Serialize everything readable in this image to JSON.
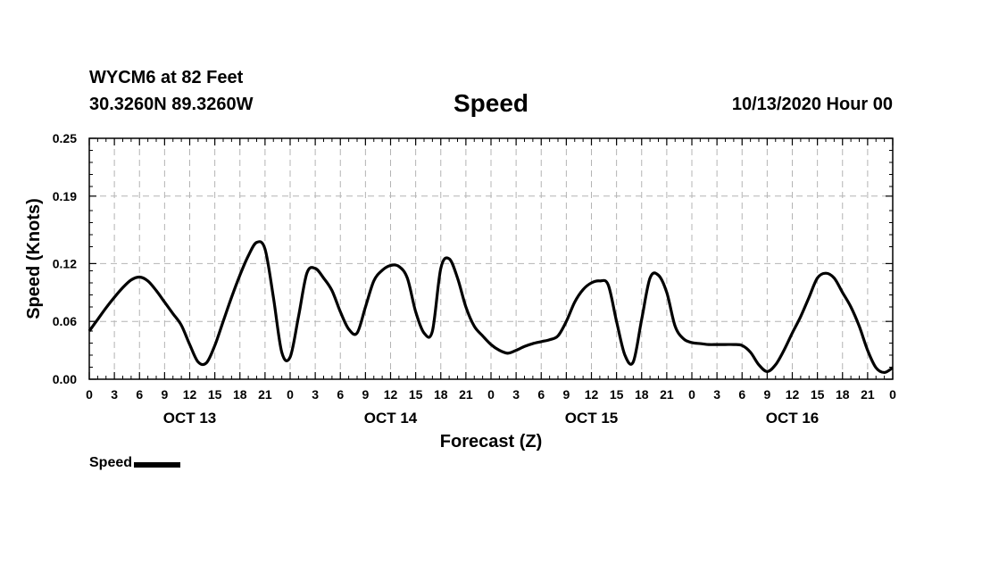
{
  "header": {
    "station": "WYCM6 at 82 Feet",
    "coords": "30.3260N 89.3260W",
    "title": "Speed",
    "date": "10/13/2020 Hour 00"
  },
  "legend": {
    "label": "Speed"
  },
  "colors": {
    "line": "#000000",
    "grid": "#b4b4b4",
    "axis": "#000000"
  },
  "chart_data": {
    "type": "line",
    "title": "Speed",
    "xlabel": "Forecast (Z)",
    "ylabel": "Speed (Knots)",
    "x_unit": "forecast hour from 10/13/2020 00Z",
    "xlim": [
      0,
      96
    ],
    "ylim": [
      0,
      0.25
    ],
    "yticks": [
      0.0,
      0.06,
      0.12,
      0.19,
      0.25
    ],
    "ytick_labels": [
      "0.00",
      "0.06",
      "0.12",
      "0.19",
      "0.25"
    ],
    "xticks": [
      0,
      3,
      6,
      9,
      12,
      15,
      18,
      21,
      24,
      27,
      30,
      33,
      36,
      39,
      42,
      45,
      48,
      51,
      54,
      57,
      60,
      63,
      66,
      69,
      72,
      75,
      78,
      81,
      84,
      87,
      90,
      93,
      96
    ],
    "xtick_labels": [
      "0",
      "3",
      "6",
      "9",
      "12",
      "15",
      "18",
      "21",
      "0",
      "3",
      "6",
      "9",
      "12",
      "15",
      "18",
      "21",
      "0",
      "3",
      "6",
      "9",
      "12",
      "15",
      "18",
      "21",
      "0",
      "3",
      "6",
      "9",
      "12",
      "15",
      "18",
      "21",
      "0"
    ],
    "day_labels": [
      {
        "label": "OCT 13",
        "hour": 12
      },
      {
        "label": "OCT 14",
        "hour": 36
      },
      {
        "label": "OCT 15",
        "hour": 60
      },
      {
        "label": "OCT 16",
        "hour": 84
      }
    ],
    "grid": true,
    "legend_position": "bottom-left",
    "series": [
      {
        "name": "Speed",
        "x": [
          0,
          1,
          2,
          3,
          4,
          5,
          6,
          7,
          8,
          9,
          10,
          11,
          12,
          13,
          14,
          15,
          16,
          17,
          18,
          19,
          20,
          21,
          22,
          23,
          24,
          25,
          26,
          27,
          28,
          29,
          30,
          31,
          32,
          33,
          34,
          35,
          36,
          37,
          38,
          39,
          40,
          41,
          42,
          43,
          44,
          45,
          46,
          47,
          48,
          49,
          50,
          51,
          52,
          53,
          54,
          55,
          56,
          57,
          58,
          59,
          60,
          61,
          62,
          63,
          64,
          65,
          66,
          67,
          68,
          69,
          70,
          71,
          72,
          73,
          74,
          75,
          76,
          77,
          78,
          79,
          80,
          81,
          82,
          83,
          84,
          85,
          86,
          87,
          88,
          89,
          90,
          91,
          92,
          93,
          94,
          95,
          96
        ],
        "values": [
          0.05,
          0.062,
          0.074,
          0.085,
          0.095,
          0.103,
          0.106,
          0.102,
          0.092,
          0.08,
          0.068,
          0.056,
          0.036,
          0.018,
          0.017,
          0.035,
          0.06,
          0.085,
          0.108,
          0.128,
          0.142,
          0.135,
          0.085,
          0.028,
          0.023,
          0.065,
          0.11,
          0.115,
          0.105,
          0.092,
          0.07,
          0.052,
          0.048,
          0.075,
          0.102,
          0.113,
          0.118,
          0.117,
          0.105,
          0.07,
          0.048,
          0.05,
          0.115,
          0.125,
          0.105,
          0.075,
          0.055,
          0.045,
          0.036,
          0.03,
          0.027,
          0.03,
          0.034,
          0.037,
          0.039,
          0.041,
          0.045,
          0.06,
          0.08,
          0.093,
          0.1,
          0.102,
          0.098,
          0.06,
          0.025,
          0.018,
          0.062,
          0.105,
          0.108,
          0.09,
          0.055,
          0.042,
          0.038,
          0.037,
          0.036,
          0.036,
          0.036,
          0.036,
          0.035,
          0.028,
          0.015,
          0.008,
          0.015,
          0.03,
          0.048,
          0.065,
          0.085,
          0.105,
          0.11,
          0.105,
          0.09,
          0.075,
          0.055,
          0.03,
          0.012,
          0.007,
          0.012
        ]
      }
    ]
  }
}
